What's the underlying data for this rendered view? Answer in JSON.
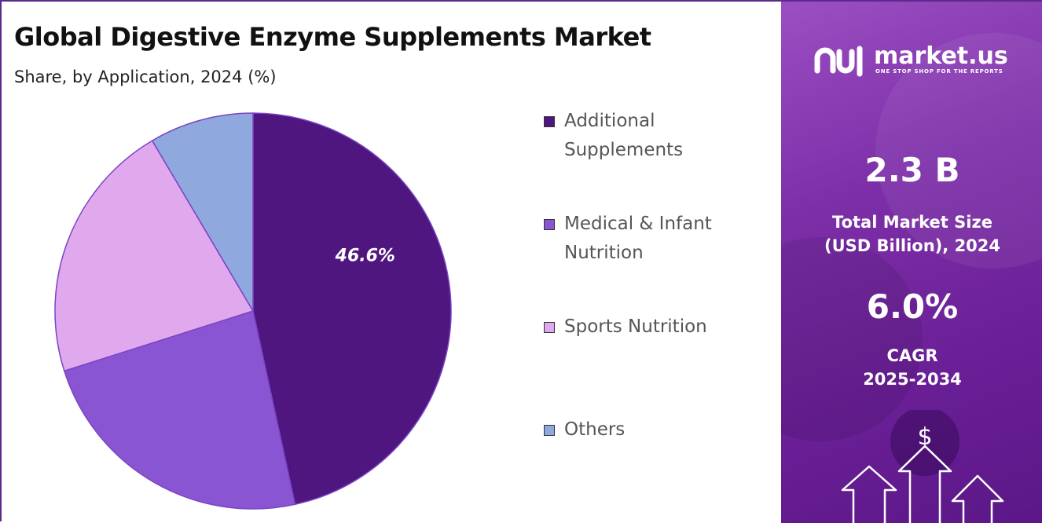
{
  "title": "Global Digestive Enzyme Supplements Market",
  "subtitle": "Share, by Application, 2024 (%)",
  "chart_data": {
    "type": "pie",
    "categories": [
      "Additional Supplements",
      "Medical & Infant Nutrition",
      "Sports Nutrition",
      "Others"
    ],
    "values": [
      46.6,
      23.5,
      21.4,
      8.5
    ],
    "colors": [
      "#4f1680",
      "#8a55d3",
      "#e0a9ee",
      "#8fa8de"
    ],
    "data_labels": [
      "46.6%",
      "",
      "",
      ""
    ],
    "start_angle_deg": 0,
    "direction": "clockwise",
    "legend_position": "right"
  },
  "legend": [
    {
      "label": "Additional Supplements",
      "color": "#4f1680"
    },
    {
      "label": "Medical & Infant Nutrition",
      "color": "#8a55d3"
    },
    {
      "label": "Sports Nutrition",
      "color": "#e0a9ee"
    },
    {
      "label": "Others",
      "color": "#8fa8de"
    }
  ],
  "brand": {
    "name": "market.us",
    "tagline": "ONE STOP SHOP FOR THE REPORTS"
  },
  "stats": {
    "market_size_value": "2.3 B",
    "market_size_label_line1": "Total Market Size",
    "market_size_label_line2": "(USD Billion), 2024",
    "cagr_value": "6.0%",
    "cagr_label_line1": "CAGR",
    "cagr_label_line2": "2025-2034"
  },
  "decor": {
    "dollar_symbol": "$"
  },
  "icons": [
    "market-us-logo-icon",
    "dollar-icon",
    "growth-arrow-icon"
  ]
}
